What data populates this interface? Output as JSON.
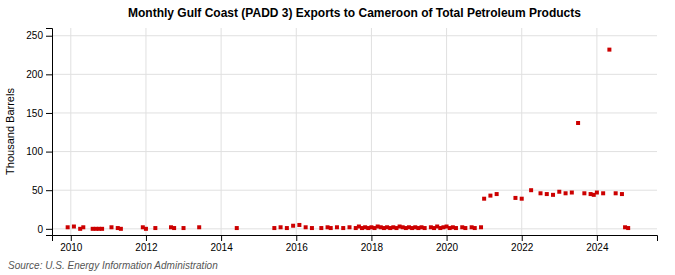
{
  "chart_data": {
    "type": "scatter",
    "title": "Monthly Gulf Coast (PADD 3) Exports to Cameroon of Total Petroleum Products",
    "ylabel": "Thousand Barrels",
    "annotations": [
      "Source: U.S. Energy Information Administration"
    ],
    "color": "#cc0000",
    "marker": "square",
    "grid": true,
    "xlim": [
      2009.5,
      2025.6
    ],
    "ylim": [
      -8,
      260
    ],
    "xticks": [
      2010,
      2012,
      2014,
      2016,
      2018,
      2020,
      2022,
      2024
    ],
    "yticks": [
      0,
      50,
      100,
      150,
      200,
      250
    ],
    "x": [
      2009.917,
      2010.083,
      2010.25,
      2010.333,
      2010.583,
      2010.667,
      2010.75,
      2010.833,
      2011.083,
      2011.25,
      2011.333,
      2011.917,
      2012.0,
      2012.25,
      2012.667,
      2012.75,
      2013.0,
      2013.417,
      2014.417,
      2015.417,
      2015.583,
      2015.75,
      2015.917,
      2016.083,
      2016.25,
      2016.417,
      2016.667,
      2016.833,
      2016.917,
      2017.083,
      2017.25,
      2017.417,
      2017.583,
      2017.667,
      2017.75,
      2017.833,
      2017.917,
      2018.0,
      2018.083,
      2018.167,
      2018.25,
      2018.333,
      2018.417,
      2018.5,
      2018.583,
      2018.667,
      2018.75,
      2018.833,
      2018.917,
      2019.0,
      2019.083,
      2019.167,
      2019.25,
      2019.333,
      2019.417,
      2019.583,
      2019.667,
      2019.75,
      2019.833,
      2019.917,
      2020.0,
      2020.083,
      2020.167,
      2020.25,
      2020.417,
      2020.5,
      2020.667,
      2020.75,
      2020.917,
      2021.0,
      2021.167,
      2021.333,
      2021.833,
      2022.0,
      2022.25,
      2022.5,
      2022.667,
      2022.833,
      2023.0,
      2023.167,
      2023.333,
      2023.5,
      2023.667,
      2023.833,
      2023.917,
      2024.0,
      2024.167,
      2024.333,
      2024.5,
      2024.667,
      2024.75,
      2024.833
    ],
    "values": [
      2,
      3,
      0,
      2,
      0,
      0,
      0,
      0,
      2,
      1,
      0,
      2,
      0,
      1,
      2,
      1,
      1,
      2,
      1,
      1,
      2,
      1,
      4,
      5,
      2,
      1,
      1,
      2,
      1,
      2,
      1,
      2,
      1,
      3,
      1,
      2,
      1,
      2,
      1,
      3,
      2,
      1,
      2,
      1,
      2,
      1,
      3,
      2,
      1,
      2,
      1,
      2,
      1,
      2,
      1,
      2,
      1,
      3,
      1,
      2,
      3,
      1,
      2,
      1,
      2,
      1,
      2,
      1,
      2,
      39,
      43,
      45,
      40,
      39,
      50,
      46,
      45,
      44,
      48,
      46,
      47,
      137,
      46,
      45,
      44,
      47,
      46,
      232,
      46,
      45,
      2,
      1
    ]
  }
}
